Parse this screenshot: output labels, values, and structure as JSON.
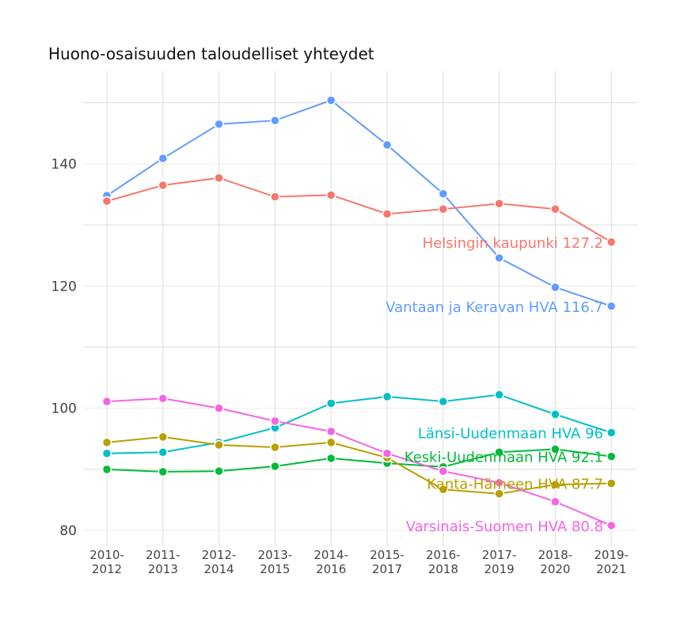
{
  "chart_data": {
    "type": "line",
    "title": "Huono-osaisuuden taloudelliset yhteydet",
    "xlabel": "",
    "ylabel": "",
    "categories": [
      "2010-\n2012",
      "2011-\n2013",
      "2012-\n2014",
      "2013-\n2015",
      "2014-\n2016",
      "2015-\n2017",
      "2016-\n2018",
      "2017-\n2019",
      "2018-\n2020",
      "2019-\n2021"
    ],
    "y_ticks": [
      80,
      100,
      120,
      140
    ],
    "ylim": [
      78,
      152
    ],
    "grid": true,
    "legend": "none (direct end labels)",
    "series": [
      {
        "name": "Vantaan ja Keravan HVA",
        "label": "Vantaan ja Keravan HVA 116.7",
        "color": "#619CFF",
        "values": [
          134.8,
          140.9,
          146.5,
          147.1,
          150.4,
          143.1,
          135.1,
          124.6,
          119.8,
          116.7
        ]
      },
      {
        "name": "Helsingin kaupunki",
        "label": "Helsingin kaupunki 127.2",
        "color": "#F8766D",
        "values": [
          133.9,
          136.5,
          137.7,
          134.6,
          134.9,
          131.8,
          132.6,
          133.5,
          132.6,
          127.2
        ]
      },
      {
        "name": "Länsi-Uudenmaan HVA",
        "label": "Länsi-Uudenmaan HVA 96",
        "color": "#00BFC4",
        "values": [
          92.6,
          92.8,
          94.4,
          96.8,
          100.8,
          101.9,
          101.1,
          102.2,
          99.0,
          96.0
        ]
      },
      {
        "name": "Keski-Uudenmaan HVA",
        "label": "Keski-Uudenmaan HVA 92.1",
        "color": "#00BA38",
        "values": [
          90.0,
          89.6,
          89.7,
          90.5,
          91.8,
          91.0,
          90.4,
          92.8,
          93.3,
          92.1
        ]
      },
      {
        "name": "Kanta-Hämeen HVA",
        "label": "Kanta-Hämeen HVA 87.7",
        "color": "#B79F00",
        "values": [
          94.4,
          95.3,
          94.0,
          93.6,
          94.4,
          91.9,
          86.7,
          86.0,
          87.5,
          87.7
        ]
      },
      {
        "name": "Varsinais-Suomen HVA",
        "label": "Varsinais-Suomen HVA 80.8",
        "color": "#F564E3",
        "values": [
          101.1,
          101.6,
          100.0,
          97.9,
          96.2,
          92.6,
          89.7,
          87.8,
          84.7,
          80.8
        ]
      }
    ]
  }
}
